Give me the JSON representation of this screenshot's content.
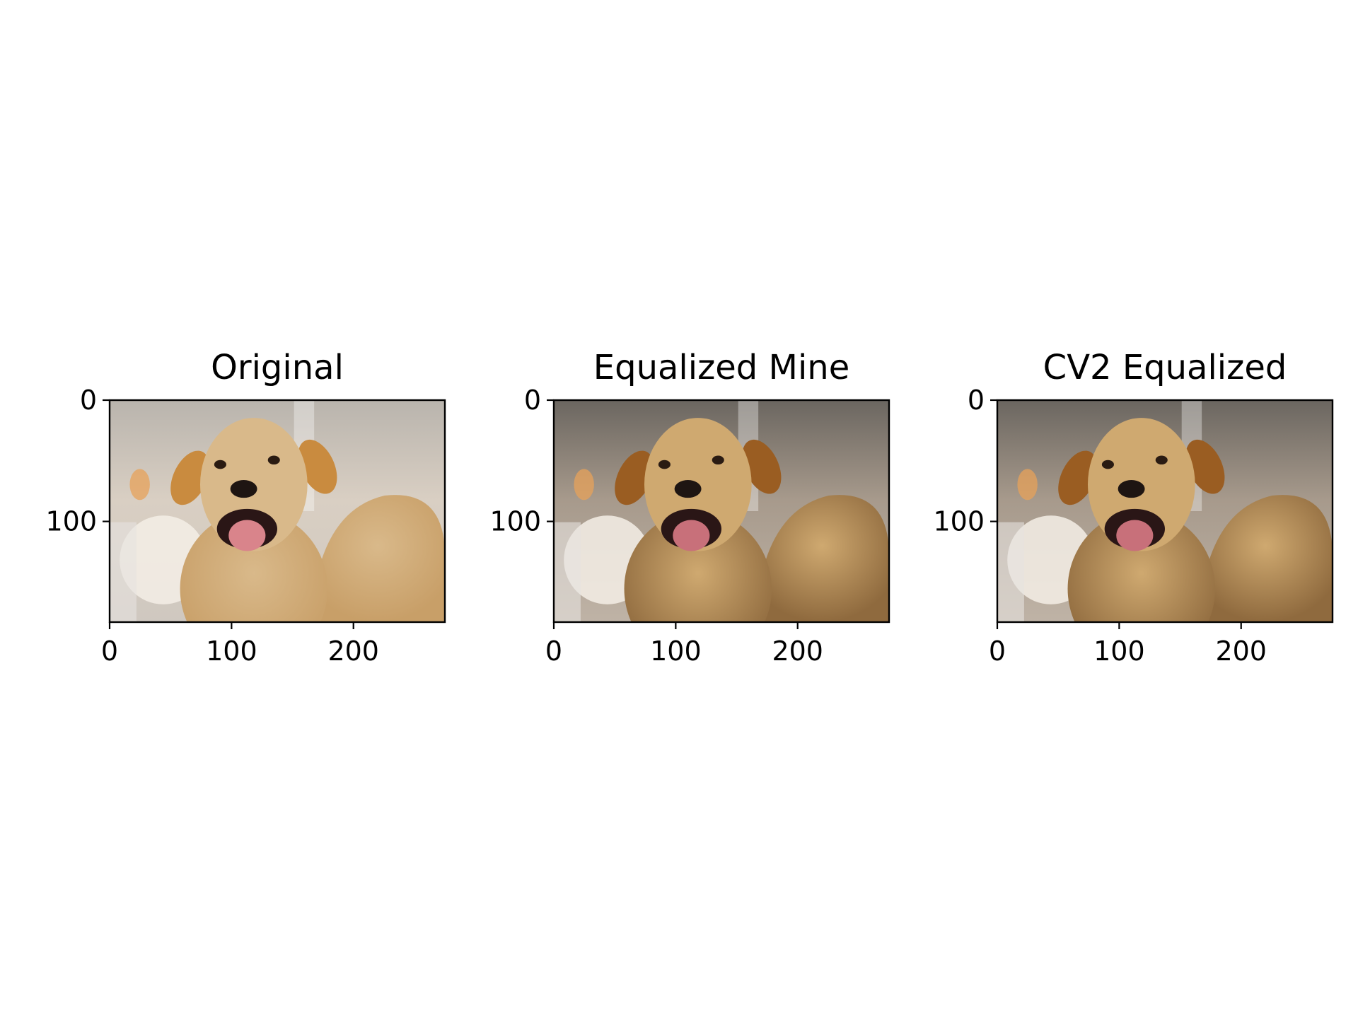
{
  "figure": {
    "panels": [
      {
        "title": "Original",
        "variant": "original"
      },
      {
        "title": "Equalized Mine",
        "variant": "equalized"
      },
      {
        "title": "CV2 Equalized",
        "variant": "equalized"
      }
    ],
    "image_subject": "dog photo (labrador)",
    "palette": {
      "background": "#ffffff",
      "axis": "#000000",
      "original": {
        "bg_top": "#b9b4ad",
        "bg_mid": "#d9cfc3",
        "bg_bottom": "#cfc8c0",
        "fur": "#d9b98a",
        "fur_shade": "#c89f68",
        "ear": "#c98b3f",
        "tongue": "#d9848b"
      },
      "equalized": {
        "bg_top": "#6b6660",
        "bg_mid": "#a79a8c",
        "bg_bottom": "#bfb3a6",
        "fur": "#cfa970",
        "fur_shade": "#8f6a3e",
        "ear": "#9a5d22",
        "tongue": "#c8707a"
      }
    }
  },
  "chart_data": [
    {
      "type": "image",
      "title": "Original",
      "xlim": [
        0,
        275
      ],
      "ylim": [
        183,
        0
      ],
      "xticks": [
        0,
        100,
        200
      ],
      "yticks": [
        0,
        100
      ],
      "xticklabels": [
        "0",
        "100",
        "200"
      ],
      "yticklabels": [
        "0",
        "100"
      ]
    },
    {
      "type": "image",
      "title": "Equalized Mine",
      "xlim": [
        0,
        275
      ],
      "ylim": [
        183,
        0
      ],
      "xticks": [
        0,
        100,
        200
      ],
      "yticks": [
        0,
        100
      ],
      "xticklabels": [
        "0",
        "100",
        "200"
      ],
      "yticklabels": [
        "0",
        "100"
      ]
    },
    {
      "type": "image",
      "title": "CV2 Equalized",
      "xlim": [
        0,
        275
      ],
      "ylim": [
        183,
        0
      ],
      "xticks": [
        0,
        100,
        200
      ],
      "yticks": [
        0,
        100
      ],
      "xticklabels": [
        "0",
        "100",
        "200"
      ],
      "yticklabels": [
        "0",
        "100"
      ]
    }
  ]
}
